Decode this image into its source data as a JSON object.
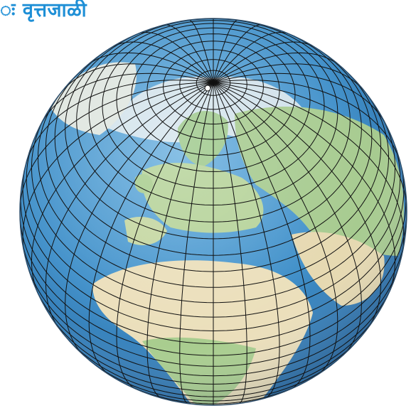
{
  "heading": {
    "text": "ः वृत्तजाळी"
  },
  "figure": {
    "name": "globe-graticule",
    "colors": {
      "ocean": "#3f8fc9",
      "land_green": "#9cc48a",
      "land_desert": "#e9dcb6",
      "ice": "#eef2f4",
      "grid": "#111111"
    }
  }
}
